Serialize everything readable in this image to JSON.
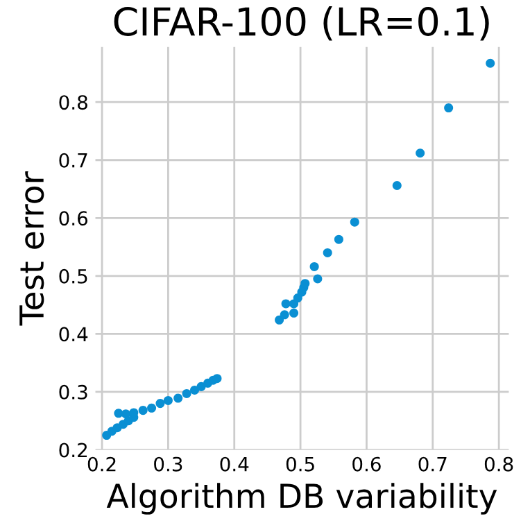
{
  "chart_data": {
    "type": "scatter",
    "title": "CIFAR-100 (LR=0.1)",
    "xlabel": "Algorithm DB variability",
    "ylabel": "Test error",
    "x": [
      0.207,
      0.215,
      0.223,
      0.232,
      0.24,
      0.248,
      0.225,
      0.236,
      0.248,
      0.262,
      0.275,
      0.288,
      0.3,
      0.315,
      0.328,
      0.34,
      0.35,
      0.36,
      0.368,
      0.374,
      0.468,
      0.476,
      0.49,
      0.496,
      0.502,
      0.478,
      0.49,
      0.505,
      0.507,
      0.521,
      0.526,
      0.541,
      0.558,
      0.582,
      0.646,
      0.681,
      0.724,
      0.787
    ],
    "values": [
      0.225,
      0.232,
      0.238,
      0.244,
      0.25,
      0.256,
      0.263,
      0.262,
      0.264,
      0.268,
      0.272,
      0.28,
      0.285,
      0.289,
      0.297,
      0.303,
      0.309,
      0.315,
      0.32,
      0.323,
      0.424,
      0.433,
      0.452,
      0.462,
      0.472,
      0.452,
      0.436,
      0.48,
      0.487,
      0.516,
      0.495,
      0.54,
      0.563,
      0.593,
      0.656,
      0.712,
      0.79,
      0.867
    ],
    "color": "#0a8fd3",
    "marker": "circle",
    "xlim": [
      0.19,
      0.815
    ],
    "ylim": [
      0.2,
      0.895
    ],
    "xticks": [
      0.2,
      0.3,
      0.4,
      0.5,
      0.6,
      0.7,
      0.8
    ],
    "yticks": [
      0.2,
      0.3,
      0.4,
      0.5,
      0.6,
      0.7,
      0.8
    ],
    "grid": true
  }
}
